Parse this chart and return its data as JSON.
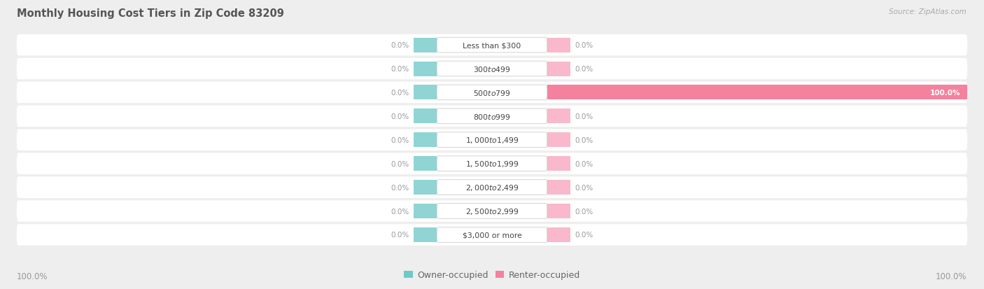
{
  "title": "Monthly Housing Cost Tiers in Zip Code 83209",
  "source": "Source: ZipAtlas.com",
  "categories": [
    "Less than $300",
    "$300 to $499",
    "$500 to $799",
    "$800 to $999",
    "$1,000 to $1,499",
    "$1,500 to $1,999",
    "$2,000 to $2,499",
    "$2,500 to $2,999",
    "$3,000 or more"
  ],
  "owner_values": [
    0.0,
    0.0,
    0.0,
    0.0,
    0.0,
    0.0,
    0.0,
    0.0,
    0.0
  ],
  "renter_values": [
    0.0,
    0.0,
    100.0,
    0.0,
    0.0,
    0.0,
    0.0,
    0.0,
    0.0
  ],
  "owner_color": "#6ec9c9",
  "renter_color": "#f4829e",
  "renter_stub_color": "#f9b8cb",
  "owner_stub_color": "#90d4d4",
  "bg_color": "#eeeeee",
  "row_bg_color": "#f7f7f7",
  "title_color": "#555555",
  "val_color": "#999999",
  "axis_label_left": "100.0%",
  "axis_label_right": "100.0%",
  "legend_owner": "Owner-occupied",
  "legend_renter": "Renter-occupied"
}
